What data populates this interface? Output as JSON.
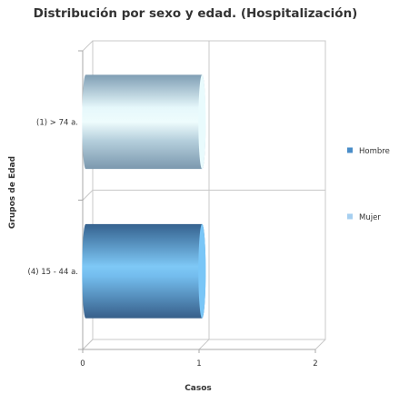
{
  "chart_data": {
    "type": "bar",
    "orientation": "horizontal",
    "title": "Distribución por sexo y edad. (Hospitalización)",
    "xlabel": "Casos",
    "ylabel": "Grupos de Edad",
    "categories": [
      "(1) > 74 a.",
      "(4) 15 - 44 a."
    ],
    "series": [
      {
        "name": "Hombre",
        "values": [
          0,
          1
        ],
        "color": "#4a8dc8"
      },
      {
        "name": "Mujer",
        "values": [
          1,
          0
        ],
        "color": "#a6cff0"
      }
    ],
    "xlim": [
      0,
      2
    ],
    "xticks": [
      "0",
      "1",
      "2"
    ],
    "grid": true,
    "legend_position": "right",
    "style": "3d-cylinder"
  }
}
